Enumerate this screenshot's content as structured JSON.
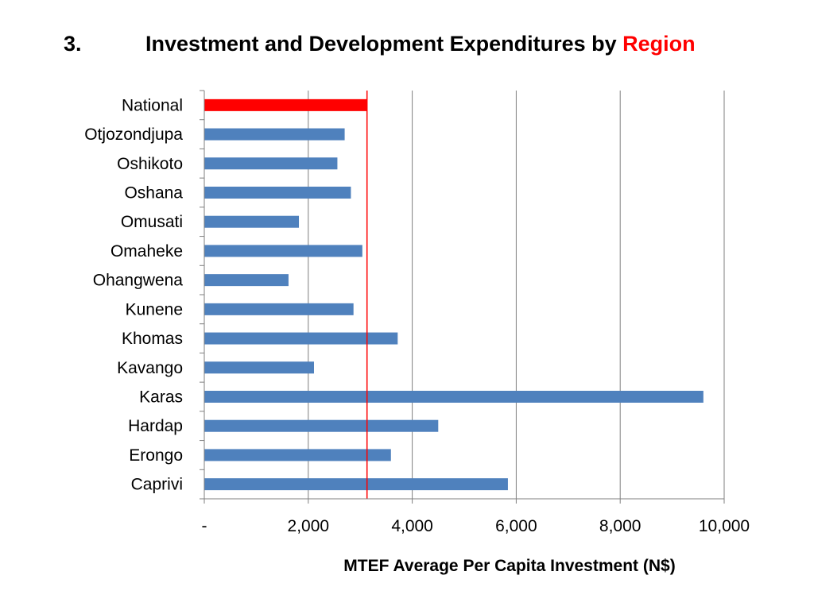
{
  "slide": {
    "number": "3.",
    "title_main": "Investment and Development Expenditures by ",
    "title_accent": "Region"
  },
  "colors": {
    "bar": "#4f81bd",
    "highlight_bar": "#ff0000",
    "reference_line": "#ff0000",
    "gridline": "#7f7f7f",
    "title_accent": "#ff0000"
  },
  "chart_data": {
    "type": "bar",
    "orientation": "horizontal",
    "categories": [
      "National",
      "Otjozondjupa",
      "Oshikoto",
      "Oshana",
      "Omusati",
      "Omaheke",
      "Ohangwena",
      "Kunene",
      "Khomas",
      "Kavango",
      "Karas",
      "Hardap",
      "Erongo",
      "Caprivi"
    ],
    "values": [
      3130,
      2700,
      2560,
      2820,
      1820,
      3040,
      1620,
      2870,
      3720,
      2110,
      9600,
      4500,
      3590,
      5840
    ],
    "highlight_category": "National",
    "reference_line_value": 3130,
    "xlabel": "MTEF Average Per Capita Investment (N$)",
    "ylabel": "",
    "xlim": [
      0,
      10000
    ],
    "x_ticks": [
      0,
      2000,
      4000,
      6000,
      8000,
      10000
    ],
    "x_tick_labels": [
      "-",
      "2,000",
      "4,000",
      "6,000",
      "8,000",
      "10,000"
    ],
    "grid": "vertical major gridlines",
    "legend": "none"
  }
}
